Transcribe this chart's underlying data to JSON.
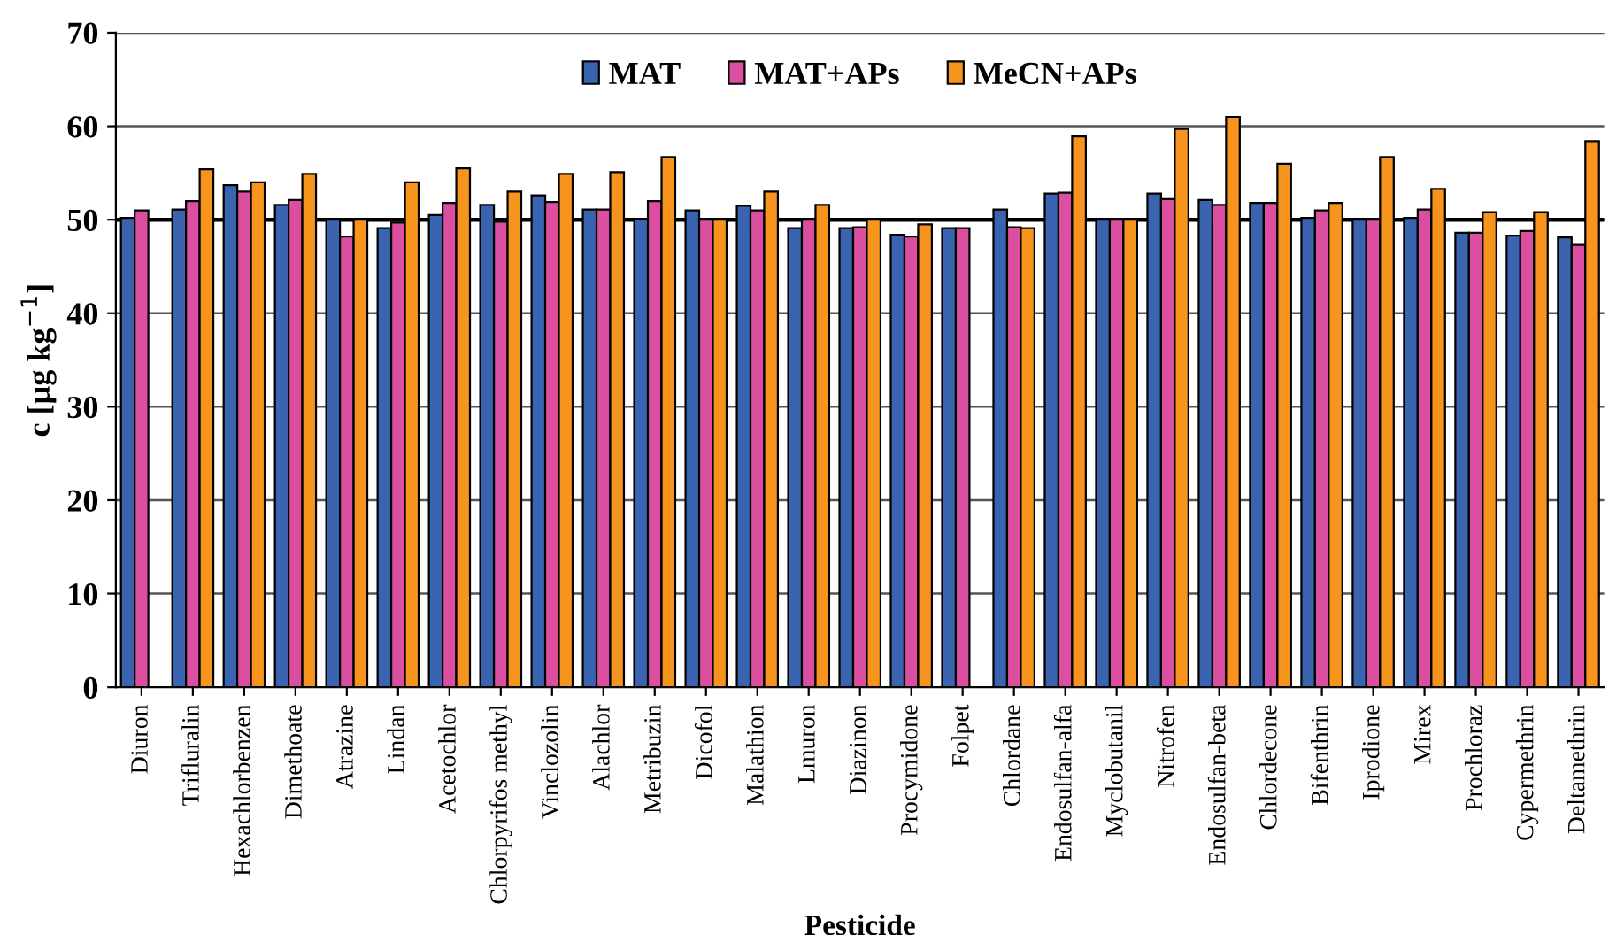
{
  "chart_data": {
    "type": "bar",
    "xlabel": "Pesticide",
    "ylabel": "c [µg kg$^{−1}$]",
    "categories": [
      "Diuron",
      "Trifluralin",
      "Hexachlorbenzen",
      "Dimethoate",
      "Atrazine",
      "Lindan",
      "Acetochlor",
      "Chlorpyrifos methyl",
      "Vinclozolin",
      "Alachlor",
      "Metribuzin",
      "Dicofol",
      "Malathion",
      "Lmuron",
      "Diazinon",
      "Procymidone",
      "Folpet",
      "Chlordane",
      "Endosulfan-alfa",
      "Myclobutanil",
      "Nitrofen",
      "Endosulfan-beta",
      "Chlordecone",
      "Bifenthrin",
      "Iprodione",
      "Mirex",
      "Prochloraz",
      "Cypermethrin",
      "Deltamethrin"
    ],
    "series": [
      {
        "name": "MAT",
        "color": "#3a63b0",
        "values": [
          50.2,
          51.1,
          53.7,
          51.6,
          50,
          49.1,
          50.5,
          51.6,
          52.6,
          51.1,
          50.1,
          51,
          51.5,
          49.1,
          49.1,
          48.4,
          49.1,
          51.1,
          52.8,
          50,
          52.8,
          52.1,
          51.8,
          50.2,
          50,
          50.2,
          48.6,
          48.3,
          48.1
        ]
      },
      {
        "name": "MAT+APs",
        "color": "#dc4fa0",
        "values": [
          51,
          52,
          53,
          52.1,
          48.2,
          49.7,
          51.8,
          49.8,
          51.9,
          51.1,
          52,
          50,
          51,
          50,
          49.2,
          48.2,
          49.1,
          49.2,
          52.9,
          50,
          52.2,
          51.6,
          51.8,
          51,
          50,
          51.1,
          48.6,
          48.8,
          47.3
        ]
      },
      {
        "name": "MeCN+APs",
        "color": "#f7941d",
        "values": [
          null,
          55.4,
          54,
          54.9,
          50,
          54,
          55.5,
          53,
          54.9,
          55.1,
          56.7,
          50,
          53,
          51.6,
          50,
          49.5,
          null,
          49.1,
          58.9,
          50,
          59.7,
          61,
          56,
          51.8,
          56.7,
          53.3,
          50.8,
          50.8,
          58.4
        ]
      }
    ],
    "ylim": [
      0,
      70
    ],
    "yticks": [
      0,
      10,
      20,
      30,
      40,
      50,
      60,
      70
    ],
    "grid": "y",
    "legend": "top",
    "ref_lines": [
      {
        "axis": "y",
        "value": 50,
        "color": "#000000"
      }
    ]
  }
}
